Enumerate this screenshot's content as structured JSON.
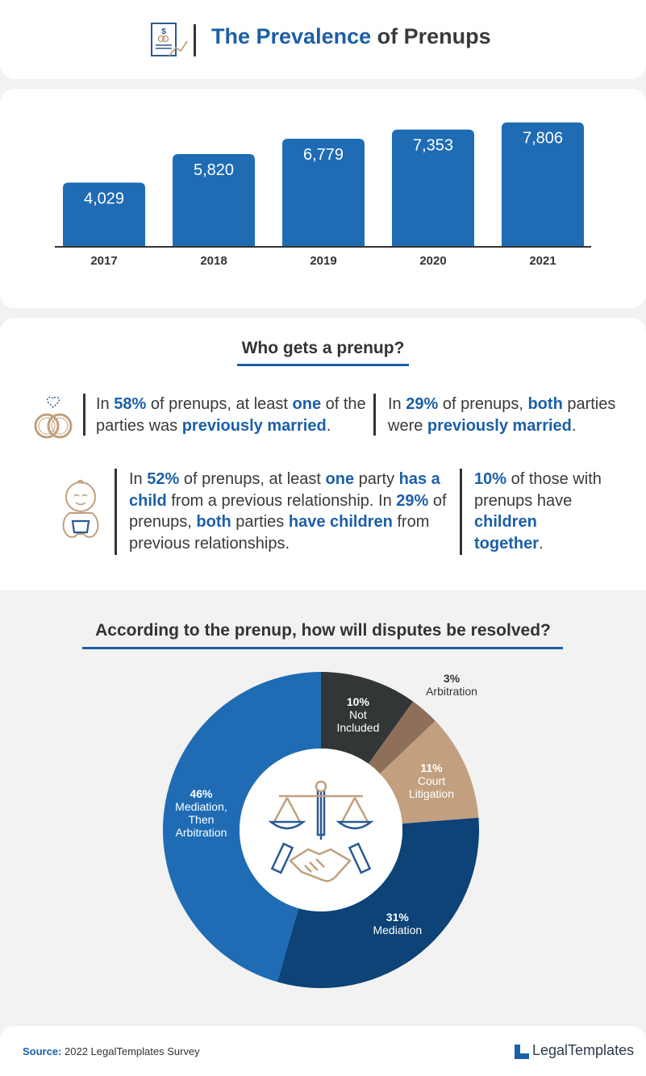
{
  "header": {
    "title_highlight": "The Prevalence",
    "title_rest": "of Prenups"
  },
  "chart_data": [
    {
      "type": "bar",
      "categories": [
        "2017",
        "2018",
        "2019",
        "2020",
        "2021"
      ],
      "values": [
        4029,
        5820,
        6779,
        7353,
        7806
      ],
      "value_labels": [
        "4,029",
        "5,820",
        "6,779",
        "7,353",
        "7,806"
      ],
      "ylim": [
        0,
        8500
      ],
      "color": "#1f6cb5",
      "grid": false
    },
    {
      "type": "pie",
      "title": "According to the prenup, how will disputes be resolved?",
      "slices": [
        {
          "label": "Not Included",
          "value": 10,
          "text": [
            "10%",
            "Not",
            "Included"
          ],
          "color": "#333637"
        },
        {
          "label": "Arbitration",
          "value": 3,
          "text": [
            "3%",
            "Arbitration"
          ],
          "color": "#8e705a"
        },
        {
          "label": "Court Litigation",
          "value": 11,
          "text": [
            "11%",
            "Court",
            "Litigation"
          ],
          "color": "#c2a07f"
        },
        {
          "label": "Mediation",
          "value": 31,
          "text": [
            "31%",
            "Mediation"
          ],
          "color": "#0d4376"
        },
        {
          "label": "Mediation, Then Arbitration",
          "value": 46,
          "text": [
            "46%",
            "Mediation,",
            "Then",
            "Arbitration"
          ],
          "color": "#1f6cb5"
        }
      ],
      "donut": true
    }
  ],
  "who": {
    "heading": "Who gets a prenup?",
    "stats": [
      {
        "pre": "In ",
        "b1": "58%",
        "mid1": " of prenups, at least ",
        "b2": "one",
        "mid2": " of the parties was ",
        "b3": "previously married",
        "end": "."
      },
      {
        "pre": "In ",
        "b1": "29%",
        "mid1": " of prenups, ",
        "b2": "both",
        "mid2": " parties were ",
        "b3": "previously married",
        "end": "."
      },
      {
        "pre": "In ",
        "b1": "52%",
        "mid1": " of prenups, at least ",
        "b2": "one",
        "mid2": " party ",
        "b3": "has a child",
        "mid3": " from a previous relationship. In ",
        "b4": "29%",
        "mid4": " of prenups, ",
        "b5": "both",
        "mid5": " parties ",
        "b6": "have children",
        "end": " from previous relationships."
      },
      {
        "b1": "10%",
        "mid1": " of those with prenups have ",
        "b2": "children together",
        "end": "."
      }
    ]
  },
  "footer": {
    "source_label": "Source:",
    "source_text": " 2022 LegalTemplates Survey",
    "logo_text": "LegalTemplates"
  },
  "colors": {
    "accent": "#1c5fa8",
    "bar": "#1f6cb5",
    "dark": "#333333"
  },
  "icons": [
    "document-chart-icon",
    "wedding-rings-icon",
    "baby-icon",
    "scales-handshake-icon",
    "legaltemplates-logo-icon"
  ]
}
